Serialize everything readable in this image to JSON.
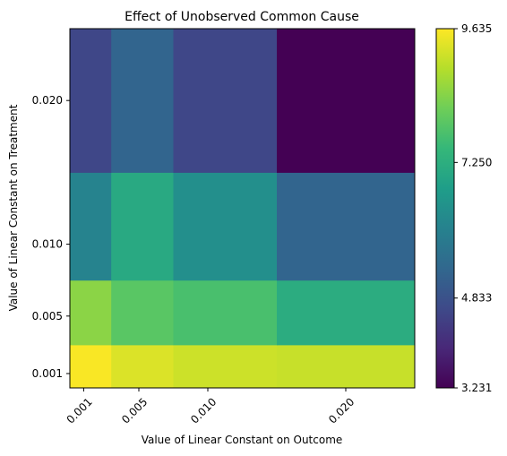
{
  "chart_data": {
    "type": "heatmap",
    "title": "Effect of Unobserved Common Cause",
    "xlabel": "Value of Linear Constant on Outcome",
    "ylabel": "Value of Linear Constant on Treatment",
    "x_values": [
      0.001,
      0.005,
      0.01,
      0.02
    ],
    "x_tick_labels": [
      "0.001",
      "0.005",
      "0.010",
      "0.020"
    ],
    "y_values": [
      0.001,
      0.005,
      0.01,
      0.02
    ],
    "y_tick_labels": [
      "0.001",
      "0.005",
      "0.010",
      "0.020"
    ],
    "x_cell_edges": [
      0.0,
      0.003,
      0.0075,
      0.015,
      0.025
    ],
    "y_cell_edges": [
      0.0,
      0.003,
      0.0075,
      0.015,
      0.025
    ],
    "z": [
      [
        9.6,
        9.3,
        9.15,
        9.1
      ],
      [
        8.5,
        7.95,
        7.75,
        7.2
      ],
      [
        6.1,
        7.1,
        6.4,
        5.3
      ],
      [
        4.6,
        5.3,
        4.6,
        3.23
      ]
    ],
    "colormap": "viridis",
    "colorbar": {
      "min": 3.231,
      "max": 9.635,
      "ticks": [
        3.231,
        4.833,
        7.25,
        9.635
      ],
      "tick_labels": [
        "3.231",
        "4.833",
        "7.250",
        "9.635"
      ]
    },
    "x_tick_rotation_deg": 45
  }
}
